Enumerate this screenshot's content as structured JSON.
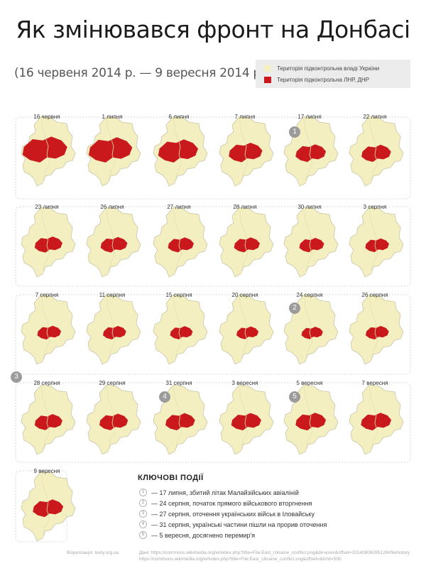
{
  "title": "Як змінювався фронт на Донбасі",
  "subtitle": "(16 червеня 2014 р. — 9 вересня 2014 р.)",
  "legend": [
    {
      "label": "Територія підконтрольна владі України",
      "color": "#f3efc1"
    },
    {
      "label": "Територія підконтрольна ЛНР, ДНР",
      "color": "#c9191d"
    }
  ],
  "colors": {
    "ukraine": "#f3efc1",
    "separatist": "#c9191d",
    "border": "#c9c6a6"
  },
  "maps": [
    {
      "date": "16 червня",
      "coverage": 0.78
    },
    {
      "date": "1 липня",
      "coverage": 0.74,
      "badge": ""
    },
    {
      "date": "6 липня",
      "coverage": 0.62
    },
    {
      "date": "7 липня",
      "coverage": 0.44
    },
    {
      "date": "17 липня",
      "coverage": 0.36,
      "badge": "1"
    },
    {
      "date": "22 липня",
      "coverage": 0.34
    },
    {
      "date": "23 липня",
      "coverage": 0.3
    },
    {
      "date": "26 липня",
      "coverage": 0.28
    },
    {
      "date": "27 липня",
      "coverage": 0.26
    },
    {
      "date": "28 липня",
      "coverage": 0.26
    },
    {
      "date": "30 липня",
      "coverage": 0.24
    },
    {
      "date": "3 серпня",
      "coverage": 0.22
    },
    {
      "date": "7 серпня",
      "coverage": 0.22
    },
    {
      "date": "11 серпня",
      "coverage": 0.21
    },
    {
      "date": "15 серпня",
      "coverage": 0.2
    },
    {
      "date": "20 серпня",
      "coverage": 0.19
    },
    {
      "date": "24 серпня",
      "coverage": 0.18,
      "badge": "2"
    },
    {
      "date": "26 серпня",
      "coverage": 0.21
    },
    {
      "date": "28 серпня",
      "coverage": 0.3,
      "badge": "3"
    },
    {
      "date": "29 серпня",
      "coverage": 0.32
    },
    {
      "date": "31 серпня",
      "coverage": 0.34,
      "badge": "4"
    },
    {
      "date": "3 вересня",
      "coverage": 0.35
    },
    {
      "date": "5 вересня",
      "coverage": 0.36,
      "badge": "5"
    },
    {
      "date": "7 вересня",
      "coverage": 0.36
    },
    {
      "date": "9 вересня",
      "coverage": 0.36
    }
  ],
  "key_events": {
    "title": "КЛЮЧОВІ ПОДІЇ",
    "items": [
      {
        "num": "1",
        "text": "— 17 липня, збитий літак Малайзійських авіаліній"
      },
      {
        "num": "2",
        "text": "— 24 серпня, початок прямого військового вторгнення"
      },
      {
        "num": "3",
        "text": "— 27 серпня, оточення українських військ в Іловайську"
      },
      {
        "num": "4",
        "text": "— 31 серпня, українські частини пішли на прорив оточення"
      },
      {
        "num": "5",
        "text": "— 5 вересня, досягнено перемир'я"
      }
    ]
  },
  "footer": {
    "credit": "Візуалізація: texty.org.ua",
    "source_line1": "Дані: https://commons.wikimedia.org/w/index.php?title=File:East_Ukraine_conflict.png&dir=prev&offset=20140806095128#filehistory",
    "source_line2": "https://commons.wikimedia.org/w/index.php?title=File:East_Ukraine_conflict.svg&offset=&limit=500"
  }
}
